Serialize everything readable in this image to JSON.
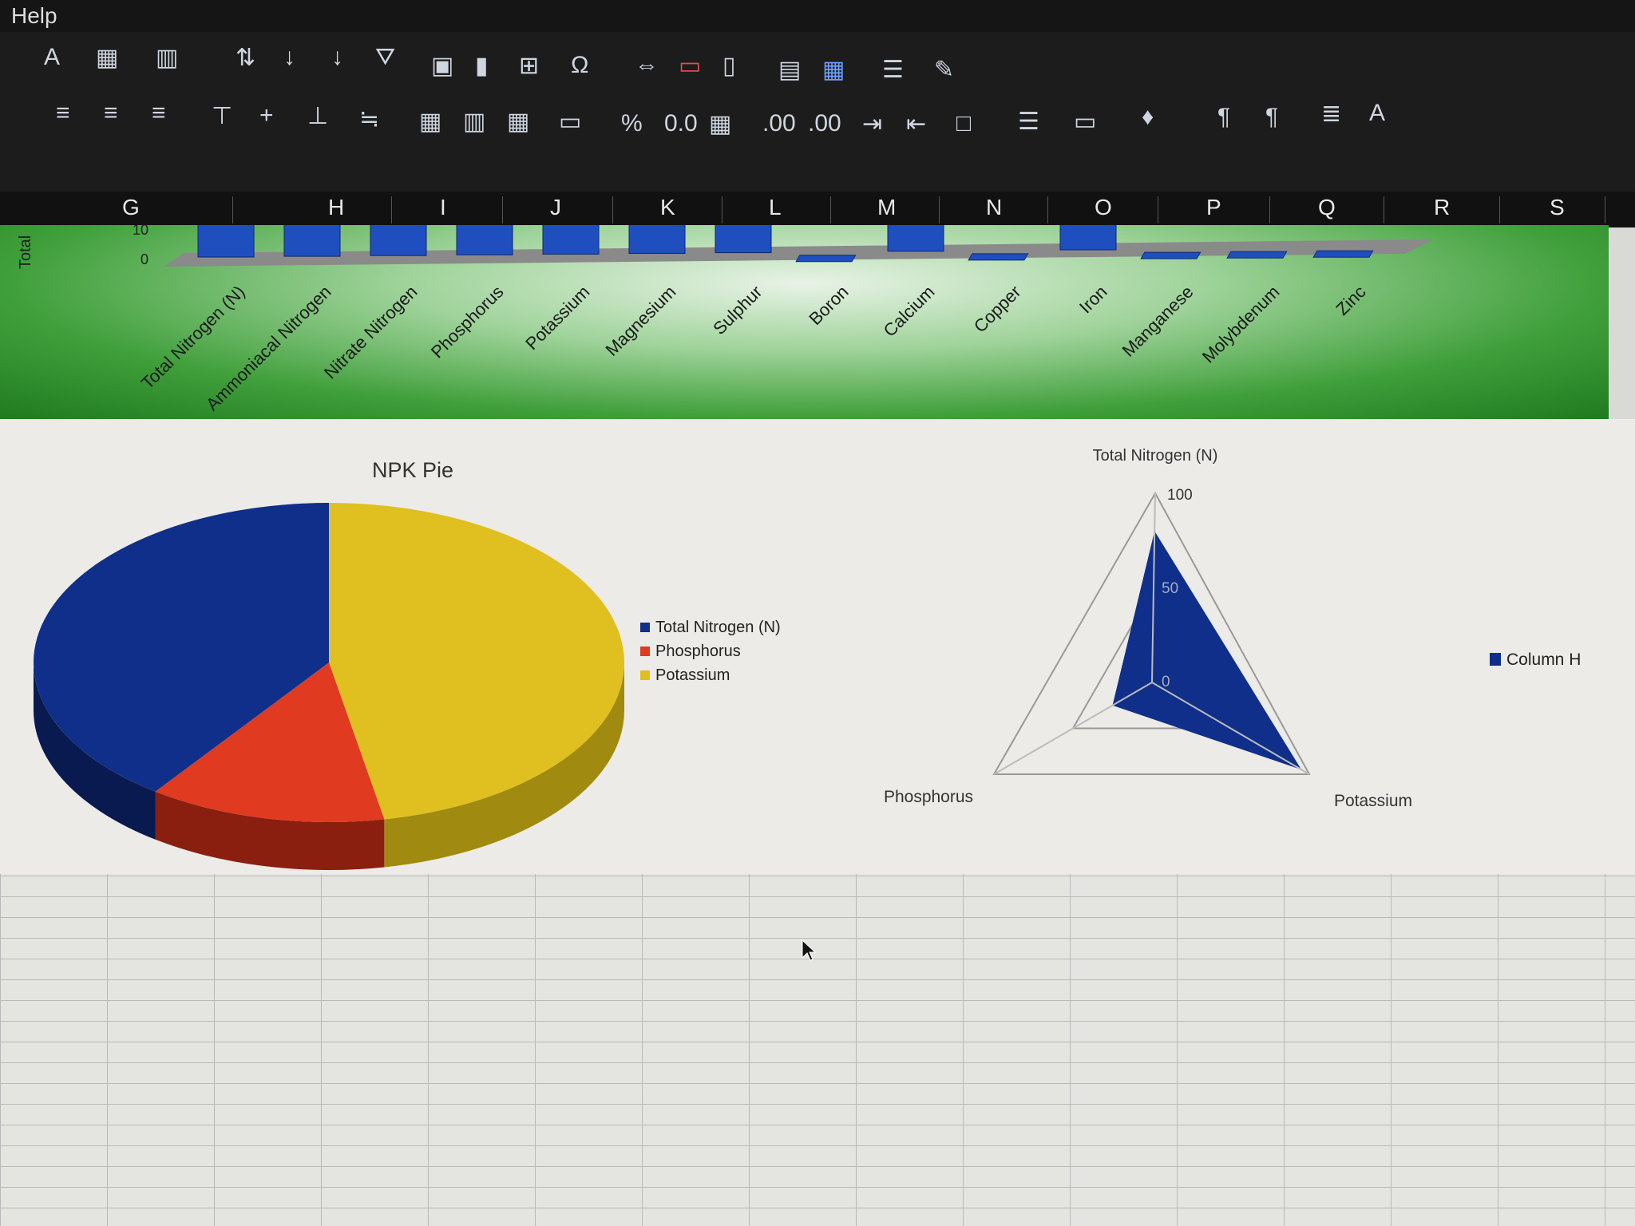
{
  "menu": {
    "help": "Help"
  },
  "columns": [
    "G",
    "H",
    "I",
    "J",
    "K",
    "L",
    "M",
    "N",
    "O",
    "P",
    "Q",
    "R",
    "S"
  ],
  "chart_data": [
    {
      "type": "bar",
      "ylabel": "Total",
      "yticks": [
        "10",
        "0"
      ],
      "categories": [
        "Total Nitrogen (N)",
        "Ammoniacal Nitrogen",
        "Nitrate Nitrogen",
        "Phosphorus",
        "Potassium",
        "Magnesium",
        "Sulphur",
        "Boron",
        "Calcium",
        "Copper",
        "Iron",
        "Manganese",
        "Molybdenum",
        "Zinc"
      ],
      "values": [
        10,
        10,
        10,
        10,
        10,
        10,
        10,
        0,
        10,
        0,
        10,
        0,
        0,
        0
      ],
      "color": "#1f4fbf",
      "background": "#3f9f3a"
    },
    {
      "type": "pie",
      "title": "NPK Pie",
      "categories": [
        "Total Nitrogen (N)",
        "Phosphorus",
        "Potassium"
      ],
      "values": [
        40,
        13,
        47
      ],
      "colors": [
        "#0f2f8a",
        "#e03a20",
        "#e0c020"
      ],
      "legend": "right"
    },
    {
      "type": "radar",
      "categories": [
        "Total Nitrogen (N)",
        "Potassium",
        "Phosphorus"
      ],
      "yticks": [
        "100",
        "50",
        "0"
      ],
      "ylim": [
        0,
        100
      ],
      "series": [
        {
          "name": "Column H",
          "values": [
            80,
            95,
            25
          ]
        }
      ],
      "color": "#0f2f8a",
      "legend": "right"
    }
  ]
}
